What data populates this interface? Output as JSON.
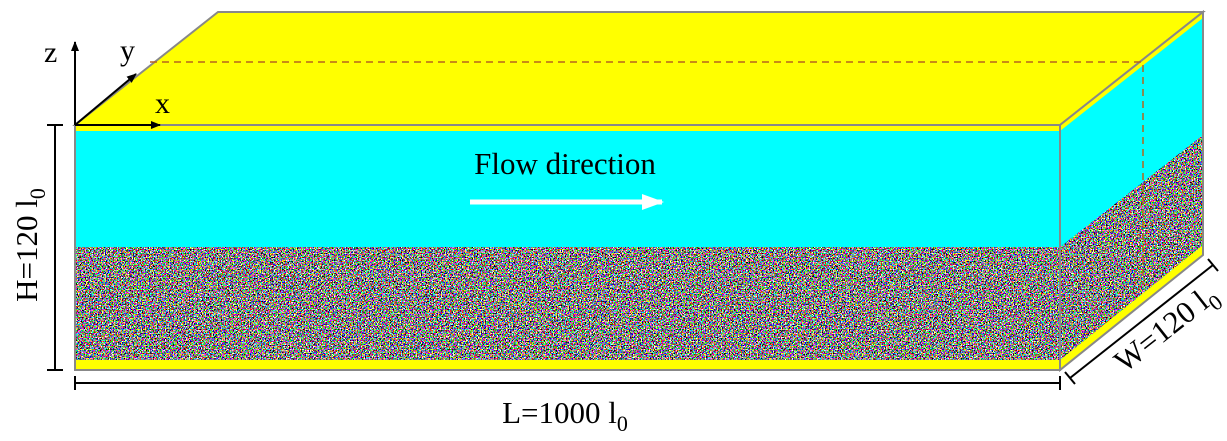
{
  "axes": {
    "z": "z",
    "y": "y",
    "x": "x"
  },
  "flow_label": "Flow direction",
  "dimensions": {
    "height": {
      "text": "H=120 l",
      "subscript": "0"
    },
    "length": {
      "text": "L=1000 l",
      "subscript": "0"
    },
    "width": {
      "text": "W=120 l",
      "subscript": "0"
    }
  }
}
